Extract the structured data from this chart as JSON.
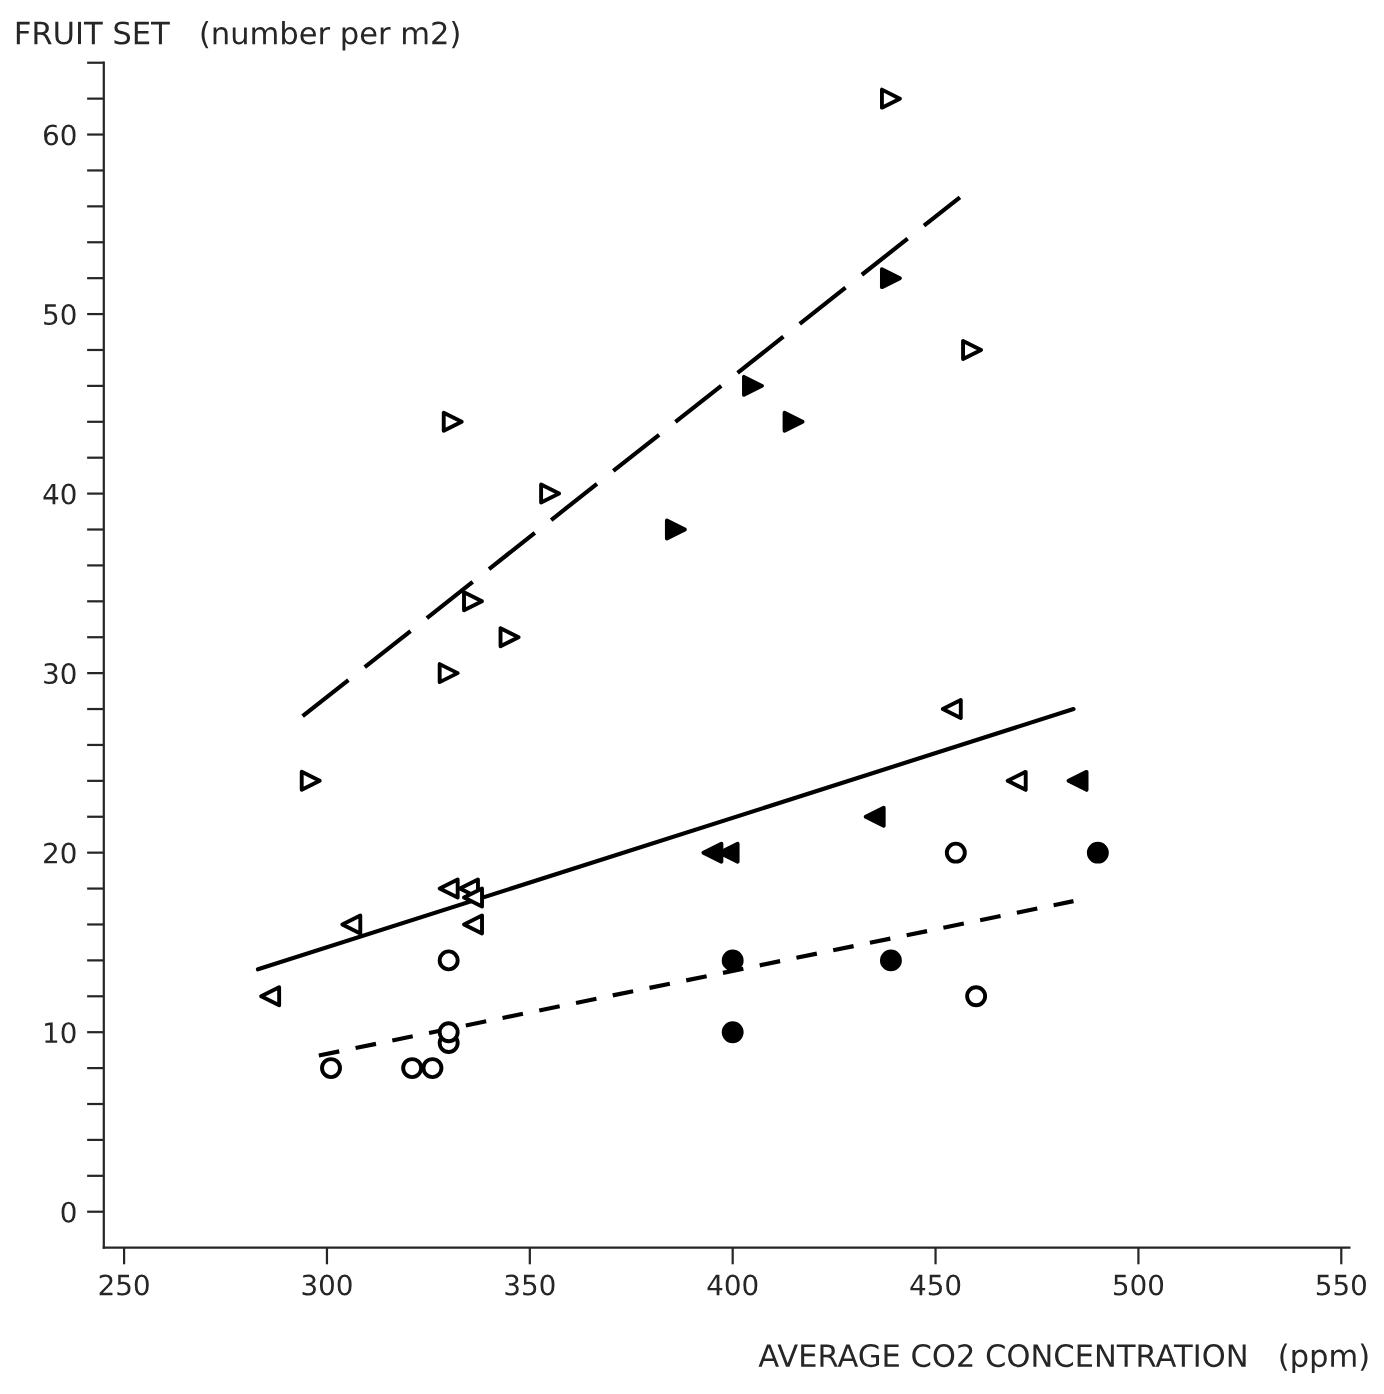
{
  "chart_data": {
    "type": "scatter",
    "xlabel": "AVERAGE CO2 CONCENTRATION   (ppm)",
    "ylabel": "FRUIT SET   (number per m2)",
    "xlim": [
      245,
      552
    ],
    "ylim": [
      -2,
      64
    ],
    "xticks": [
      250,
      300,
      350,
      400,
      450,
      500,
      550
    ],
    "yticks": [
      0,
      {
        "value": 2,
        "label": null
      },
      {
        "value": 4,
        "label": null
      },
      {
        "value": 6,
        "label": null
      },
      {
        "value": 8,
        "label": null
      },
      10,
      {
        "value": 12,
        "label": null
      },
      {
        "value": 14,
        "label": null
      },
      {
        "value": 16,
        "label": null
      },
      {
        "value": 18,
        "label": null
      },
      20,
      {
        "value": 22,
        "label": null
      },
      {
        "value": 24,
        "label": null
      },
      {
        "value": 26,
        "label": null
      },
      {
        "value": 28,
        "label": null
      },
      30,
      {
        "value": 32,
        "label": null
      },
      {
        "value": 34,
        "label": null
      },
      {
        "value": 36,
        "label": null
      },
      {
        "value": 38,
        "label": null
      },
      40,
      {
        "value": 42,
        "label": null
      },
      {
        "value": 44,
        "label": null
      },
      {
        "value": 46,
        "label": null
      },
      {
        "value": 48,
        "label": null
      },
      50,
      {
        "value": 52,
        "label": null
      },
      {
        "value": 54,
        "label": null
      },
      {
        "value": 56,
        "label": null
      },
      {
        "value": 58,
        "label": null
      },
      60,
      {
        "value": 62,
        "label": null
      },
      {
        "value": 64,
        "label": null
      }
    ],
    "grid": false,
    "legend": false,
    "series": [
      {
        "marker": "triangle_right_open",
        "color": "#000000",
        "x": [
          296,
          330,
          331,
          336,
          345,
          355,
          439,
          459
        ],
        "values": [
          24,
          30,
          44,
          34,
          32,
          40,
          62,
          48
        ]
      },
      {
        "marker": "triangle_right",
        "color": "#000000",
        "x": [
          386,
          405,
          415,
          439
        ],
        "values": [
          38,
          46,
          44,
          52
        ]
      },
      {
        "marker": "triangle_left_open",
        "color": "#000000",
        "x": [
          286,
          306,
          330,
          335,
          336,
          336,
          454,
          470
        ],
        "values": [
          12,
          16,
          18,
          18,
          17.5,
          16,
          28,
          24
        ]
      },
      {
        "marker": "triangle_left",
        "color": "#000000",
        "x": [
          395,
          399,
          435,
          485
        ],
        "values": [
          20,
          20,
          22,
          24
        ]
      },
      {
        "marker": "circle_open",
        "color": "#000000",
        "x": [
          301,
          321,
          326,
          330,
          330,
          330,
          455,
          460
        ],
        "values": [
          8,
          8,
          8,
          9.4,
          10,
          14,
          20,
          12
        ]
      },
      {
        "marker": "circle",
        "color": "#000000",
        "x": [
          400,
          400,
          439,
          490
        ],
        "values": [
          10,
          14,
          14,
          20
        ]
      },
      {
        "type": "line",
        "line_style": "dashed",
        "color": "#000000",
        "x": [
          294,
          456
        ],
        "values": [
          27.6,
          56.5
        ]
      },
      {
        "type": "line",
        "line_style": "solid",
        "color": "#000000",
        "x": [
          283,
          484
        ],
        "values": [
          13.5,
          28
        ]
      },
      {
        "type": "line",
        "line_style": "dotted",
        "color": "#000000",
        "x": [
          298,
          484
        ],
        "values": [
          8.7,
          17.3
        ]
      }
    ]
  }
}
